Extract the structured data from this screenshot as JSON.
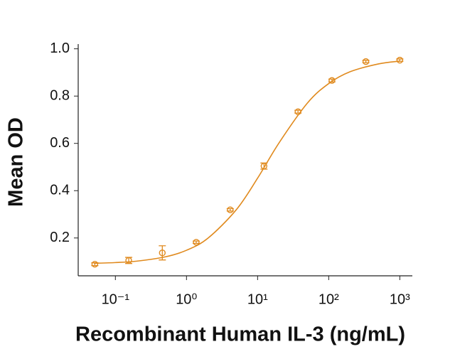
{
  "chart_data": {
    "type": "scatter",
    "x_label": "Recombinant Human IL-3 (ng/mL)",
    "y_label": "Mean OD",
    "log_x": true,
    "xlim": [
      0.03,
      1500
    ],
    "xticks": [
      {
        "value": 0.1,
        "label": "10⁻¹"
      },
      {
        "value": 1,
        "label": "10⁰"
      },
      {
        "value": 10,
        "label": "10¹"
      },
      {
        "value": 100,
        "label": "10²"
      },
      {
        "value": 1000,
        "label": "10³"
      }
    ],
    "ylim": [
      0.04,
      1.02
    ],
    "yticks": [
      0.2,
      0.4,
      0.6,
      0.8,
      {
        "value": 1,
        "label": "1.0"
      }
    ],
    "color": "#e08a1e",
    "series": [
      {
        "x": [
          0.0514,
          0.154,
          0.457,
          1.37,
          4.12,
          12.3,
          37,
          111,
          333,
          1000
        ],
        "values": [
          0.089,
          0.105,
          0.137,
          0.182,
          0.319,
          0.504,
          0.734,
          0.866,
          0.946,
          0.952
        ],
        "errors": [
          0.006,
          0.013,
          0.03,
          0.005,
          0.005,
          0.013,
          0.006,
          0.006,
          0.005,
          0.005
        ]
      }
    ],
    "fit": {
      "x": [
        0.05,
        0.1,
        0.2,
        0.5,
        1,
        2,
        5,
        10,
        20,
        50,
        100,
        200,
        500,
        1000
      ],
      "values": [
        0.093,
        0.096,
        0.102,
        0.12,
        0.148,
        0.199,
        0.319,
        0.453,
        0.602,
        0.77,
        0.853,
        0.903,
        0.936,
        0.948
      ]
    }
  }
}
